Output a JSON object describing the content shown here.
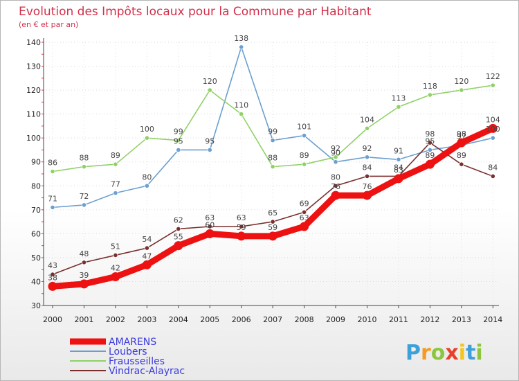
{
  "chart_data": {
    "type": "line",
    "title": "Evolution des Impôts locaux pour la Commune par Habitant",
    "subtitle": "(en € et par an)",
    "xlabel": "",
    "ylabel": "",
    "ylim": [
      30,
      140
    ],
    "yticks": [
      "30",
      "40",
      "50",
      "60",
      "70",
      "80",
      "90",
      "100",
      "110",
      "120",
      "130",
      "140"
    ],
    "categories": [
      "2000",
      "2001",
      "2002",
      "2003",
      "2004",
      "2005",
      "2006",
      "2007",
      "2008",
      "2009",
      "2010",
      "2011",
      "2012",
      "2013",
      "2014"
    ],
    "grid": true,
    "legend_position": "bottom-left",
    "series": [
      {
        "name": "AMARENS",
        "color": "#ee1111",
        "values": [
          38,
          39,
          42,
          47,
          55,
          60,
          59,
          59,
          63,
          76,
          76,
          83,
          89,
          98,
          104
        ],
        "labels": [
          "38",
          "39",
          "42",
          "47",
          "55",
          "60",
          "59",
          "59",
          "63",
          "76",
          "76",
          "83",
          "89",
          "98",
          "104"
        ]
      },
      {
        "name": "Loubers",
        "color": "#6a9fd0",
        "values": [
          71,
          72,
          77,
          80,
          95,
          95,
          138,
          99,
          101,
          90,
          92,
          91,
          95,
          97,
          100
        ],
        "labels": [
          "71",
          "72",
          "77",
          "80",
          "95",
          "95",
          "138",
          "99",
          "101",
          "90",
          "92",
          "91",
          "95",
          "97",
          "100"
        ]
      },
      {
        "name": "Frausseilles",
        "color": "#8fd165",
        "values": [
          86,
          88,
          89,
          100,
          99,
          120,
          110,
          88,
          89,
          92,
          104,
          113,
          118,
          120,
          122
        ],
        "labels": [
          "86",
          "88",
          "89",
          "100",
          "99",
          "120",
          "110",
          "88",
          "89",
          "92",
          "104",
          "113",
          "118",
          "120",
          "122"
        ]
      },
      {
        "name": "Vindrac-Alayrac",
        "color": "#7a2f2f",
        "values": [
          43,
          48,
          51,
          54,
          62,
          63,
          63,
          65,
          69,
          80,
          84,
          84,
          98,
          89,
          84
        ],
        "labels": [
          "43",
          "48",
          "51",
          "54",
          "62",
          "63",
          "63",
          "65",
          "69",
          "80",
          "84",
          "84",
          "98",
          "89",
          "84"
        ]
      }
    ]
  },
  "logo": {
    "letters": [
      "P",
      "r",
      "o",
      "x",
      "i",
      "t",
      "i"
    ],
    "colors": [
      "#3da0d9",
      "#f59b22",
      "#8cc63e",
      "#e8402a",
      "#f5c518",
      "#3da0d9",
      "#8cc63e"
    ]
  }
}
